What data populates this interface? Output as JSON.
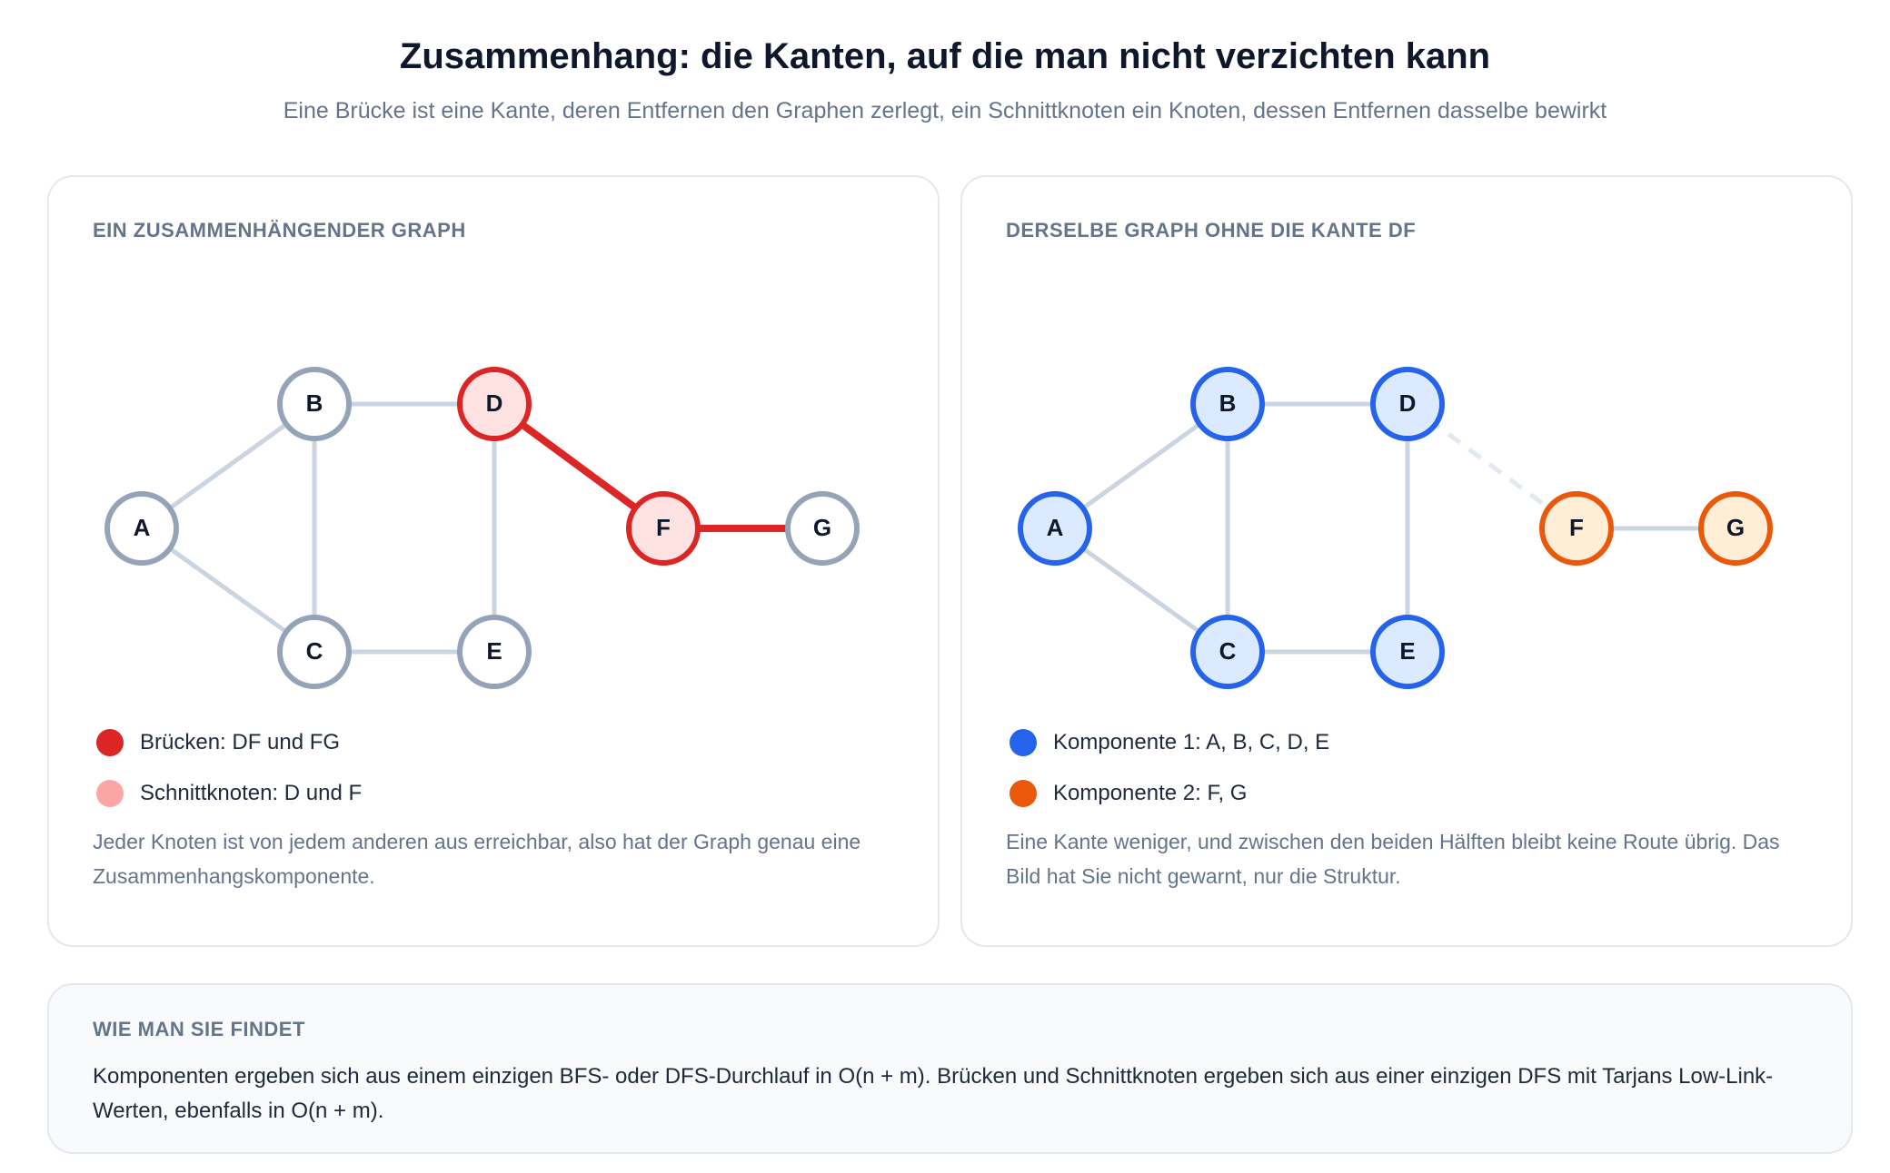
{
  "header": {
    "title": "Zusammenhang: die Kanten, auf die man nicht verzichten kann",
    "subtitle": "Eine Brücke ist eine Kante, deren Entfernen den Graphen zerlegt, ein Schnittknoten ein Knoten, dessen Entfernen dasselbe bewirkt"
  },
  "left_card": {
    "label": "EIN ZUSAMMENHÄNGENDER GRAPH",
    "nodes": [
      {
        "id": "A",
        "style": "normal"
      },
      {
        "id": "B",
        "style": "normal"
      },
      {
        "id": "C",
        "style": "normal"
      },
      {
        "id": "D",
        "style": "cut"
      },
      {
        "id": "E",
        "style": "normal"
      },
      {
        "id": "F",
        "style": "cut"
      },
      {
        "id": "G",
        "style": "normal"
      }
    ],
    "edges": [
      {
        "from": "A",
        "to": "B",
        "style": "normal"
      },
      {
        "from": "A",
        "to": "C",
        "style": "normal"
      },
      {
        "from": "B",
        "to": "C",
        "style": "normal"
      },
      {
        "from": "B",
        "to": "D",
        "style": "normal"
      },
      {
        "from": "C",
        "to": "E",
        "style": "normal"
      },
      {
        "from": "D",
        "to": "E",
        "style": "normal"
      },
      {
        "from": "D",
        "to": "F",
        "style": "bridge"
      },
      {
        "from": "F",
        "to": "G",
        "style": "bridge"
      }
    ],
    "legend": [
      {
        "color": "#dc2626",
        "text": "Brücken: DF und FG"
      },
      {
        "color": "#fca5a5",
        "text": "Schnittknoten: D und F"
      }
    ],
    "note": "Jeder Knoten ist von jedem anderen aus erreichbar, also hat der Graph genau eine Zusammenhangskomponente."
  },
  "right_card": {
    "label": "DERSELBE GRAPH OHNE DIE KANTE DF",
    "nodes": [
      {
        "id": "A",
        "style": "comp1"
      },
      {
        "id": "B",
        "style": "comp1"
      },
      {
        "id": "C",
        "style": "comp1"
      },
      {
        "id": "D",
        "style": "comp1"
      },
      {
        "id": "E",
        "style": "comp1"
      },
      {
        "id": "F",
        "style": "comp2"
      },
      {
        "id": "G",
        "style": "comp2"
      }
    ],
    "edges": [
      {
        "from": "A",
        "to": "B",
        "style": "normal"
      },
      {
        "from": "A",
        "to": "C",
        "style": "normal"
      },
      {
        "from": "B",
        "to": "C",
        "style": "normal"
      },
      {
        "from": "B",
        "to": "D",
        "style": "normal"
      },
      {
        "from": "C",
        "to": "E",
        "style": "normal"
      },
      {
        "from": "D",
        "to": "E",
        "style": "normal"
      },
      {
        "from": "D",
        "to": "F",
        "style": "removed"
      },
      {
        "from": "F",
        "to": "G",
        "style": "normal"
      }
    ],
    "legend": [
      {
        "color": "#2563eb",
        "text": "Komponente 1: A, B, C, D, E"
      },
      {
        "color": "#ea580c",
        "text": "Komponente 2: F, G"
      }
    ],
    "note": "Eine Kante weniger, und zwischen den beiden Hälften bleibt keine Route übrig. Das Bild hat Sie nicht gewarnt, nur die Struktur."
  },
  "bottom_card": {
    "label": "WIE MAN SIE FINDET",
    "text": "Komponenten ergeben sich aus einem einzigen BFS- oder DFS-Durchlauf in O(n + m). Brücken und Schnittknoten ergeben sich aus einer einzigen DFS mit Tarjans Low-Link-Werten, ebenfalls in O(n + m)."
  },
  "colors": {
    "edge_normal": "#cbd5e1",
    "bridge": "#dc2626",
    "node_normal_stroke": "#94a3b8",
    "cut_fill": "#fee2e2",
    "comp1_stroke": "#2563eb",
    "comp1_fill": "#dbeafe",
    "comp2_stroke": "#ea580c",
    "comp2_fill": "#ffedd5"
  }
}
